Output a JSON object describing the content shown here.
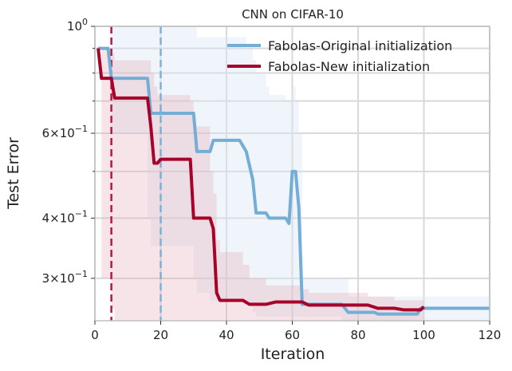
{
  "chart_data": {
    "type": "line",
    "title": "CNN on CIFAR-10",
    "xlabel": "Iteration",
    "ylabel": "Test Error",
    "xlim": [
      0,
      120
    ],
    "ylim": [
      0.245,
      1.0
    ],
    "yscale": "log",
    "grid": true,
    "legend_position": "top-right",
    "x_ticks": [
      {
        "value": 0,
        "label": "0"
      },
      {
        "value": 20,
        "label": "20"
      },
      {
        "value": 40,
        "label": "40"
      },
      {
        "value": 60,
        "label": "60"
      },
      {
        "value": 80,
        "label": "80"
      },
      {
        "value": 100,
        "label": "100"
      },
      {
        "value": 120,
        "label": "120"
      }
    ],
    "y_ticks": [
      {
        "value": 1.0,
        "base": "10",
        "exp": "0"
      },
      {
        "value": 0.6,
        "mant": "6",
        "base": "10",
        "exp": "−1"
      },
      {
        "value": 0.4,
        "mant": "4",
        "base": "10",
        "exp": "−1"
      },
      {
        "value": 0.3,
        "mant": "3",
        "base": "10",
        "exp": "−1"
      }
    ],
    "y_minor_ticks": [
      0.5,
      0.7,
      0.8,
      0.9
    ],
    "vlines": [
      {
        "x": 5,
        "color": "#b5174a",
        "style": "dashed"
      },
      {
        "x": 20,
        "color": "#7fb0d4",
        "style": "dashed"
      }
    ],
    "series": [
      {
        "name": "Fabolas-Original initialization",
        "color": "#74aed6",
        "band_color": "#d6e6f3",
        "band_opacity": 0.4,
        "x": [
          1,
          4,
          5,
          16,
          17,
          30,
          31,
          35,
          36,
          44,
          46,
          48,
          49,
          52,
          53,
          58,
          59,
          60,
          61,
          62,
          63,
          75,
          77,
          85,
          86,
          98,
          99,
          120
        ],
        "y": [
          0.9,
          0.9,
          0.78,
          0.78,
          0.66,
          0.66,
          0.55,
          0.55,
          0.58,
          0.58,
          0.55,
          0.48,
          0.41,
          0.41,
          0.4,
          0.4,
          0.39,
          0.5,
          0.5,
          0.42,
          0.265,
          0.265,
          0.255,
          0.255,
          0.253,
          0.253,
          0.26,
          0.26
        ],
        "lower": [
          0.9,
          0.9,
          0.6,
          0.4,
          0.35,
          0.3,
          0.28,
          0.27,
          0.27,
          0.27,
          0.265,
          0.255,
          0.25,
          0.25,
          0.25,
          0.25,
          0.25,
          0.25,
          0.25,
          0.25,
          0.25,
          0.245,
          0.245,
          0.245,
          0.245,
          0.245,
          0.245,
          0.245
        ],
        "upper": [
          0.9,
          0.9,
          1.0,
          1.0,
          1.0,
          1.0,
          0.95,
          0.95,
          0.95,
          0.95,
          0.9,
          0.85,
          0.8,
          0.75,
          0.72,
          0.7,
          0.7,
          0.75,
          0.7,
          0.6,
          0.3,
          0.3,
          0.275,
          0.275,
          0.275,
          0.275,
          0.275,
          0.275
        ]
      },
      {
        "name": "Fabolas-New initialization",
        "color": "#a6032a",
        "band_color": "#e3a6b3",
        "band_opacity": 0.3,
        "x": [
          1,
          2,
          5,
          6,
          16,
          17,
          18,
          19,
          20,
          29,
          30,
          35,
          36,
          37,
          38,
          45,
          47,
          52,
          55,
          63,
          65,
          83,
          86,
          91,
          94,
          99,
          100
        ],
        "y": [
          0.9,
          0.78,
          0.78,
          0.71,
          0.71,
          0.62,
          0.52,
          0.52,
          0.53,
          0.53,
          0.4,
          0.4,
          0.38,
          0.28,
          0.27,
          0.27,
          0.265,
          0.265,
          0.268,
          0.268,
          0.264,
          0.264,
          0.26,
          0.26,
          0.258,
          0.258,
          0.262
        ],
        "lower": [
          0.9,
          0.3,
          0.26,
          0.245,
          0.245,
          0.245,
          0.245,
          0.245,
          0.245,
          0.245,
          0.245,
          0.245,
          0.245,
          0.245,
          0.245,
          0.245,
          0.245,
          0.245,
          0.245,
          0.245,
          0.245,
          0.245,
          0.245,
          0.245,
          0.245,
          0.245,
          0.245
        ],
        "upper": [
          0.9,
          0.9,
          0.88,
          0.85,
          0.85,
          0.8,
          0.75,
          0.72,
          0.72,
          0.7,
          0.62,
          0.5,
          0.45,
          0.36,
          0.34,
          0.32,
          0.3,
          0.29,
          0.29,
          0.285,
          0.28,
          0.275,
          0.275,
          0.27,
          0.27,
          0.27,
          0.27
        ]
      }
    ]
  }
}
